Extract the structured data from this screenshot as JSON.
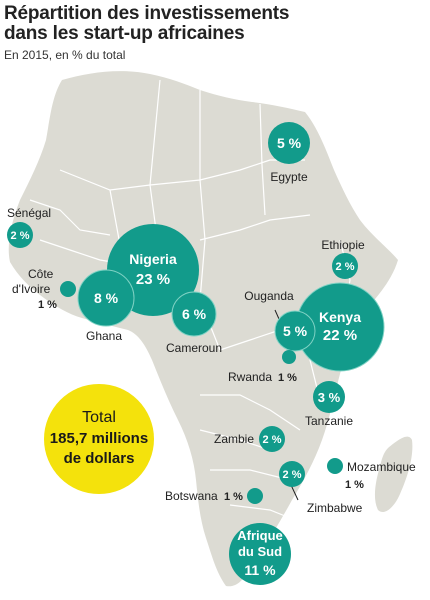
{
  "header": {
    "title_line1": "Répartition des investissements",
    "title_line2": "dans les start-up africaines",
    "subtitle": "En 2015, en % du total"
  },
  "colors": {
    "bubble": "#129b8b",
    "map_land": "#dcdbd3",
    "map_border": "#ffffff",
    "total_circle": "#f4e20c"
  },
  "total": {
    "label": "Total",
    "value_line1": "185,7 millions",
    "value_line2": "de dollars"
  },
  "countries": {
    "egypte": {
      "name": "Egypte",
      "pct": "5 %"
    },
    "senegal": {
      "name": "Sénégal",
      "pct": "2 %"
    },
    "cote_divoire": {
      "name_line1": "Côte",
      "name_line2": "d'Ivoire",
      "pct": "1 %"
    },
    "nigeria": {
      "name": "Nigeria",
      "pct": "23 %"
    },
    "ghana": {
      "name": "Ghana",
      "pct": "8 %"
    },
    "cameroun": {
      "name": "Cameroun",
      "pct": "6 %"
    },
    "ethiopie": {
      "name": "Ethiopie",
      "pct": "2 %"
    },
    "ouganda": {
      "name": "Ouganda",
      "pct": "5 %"
    },
    "kenya": {
      "name": "Kenya",
      "pct": "22 %"
    },
    "rwanda": {
      "name": "Rwanda",
      "pct": "1 %"
    },
    "tanzanie": {
      "name": "Tanzanie",
      "pct": "3 %"
    },
    "zambie": {
      "name": "Zambie",
      "pct": "2 %"
    },
    "mozambique": {
      "name": "Mozambique",
      "pct": "1 %"
    },
    "zimbabwe": {
      "name": "Zimbabwe",
      "pct": "2 %"
    },
    "botswana": {
      "name": "Botswana",
      "pct": "1 %"
    },
    "afrique_du_sud": {
      "name_line1": "Afrique",
      "name_line2": "du Sud",
      "pct": "11 %"
    }
  }
}
